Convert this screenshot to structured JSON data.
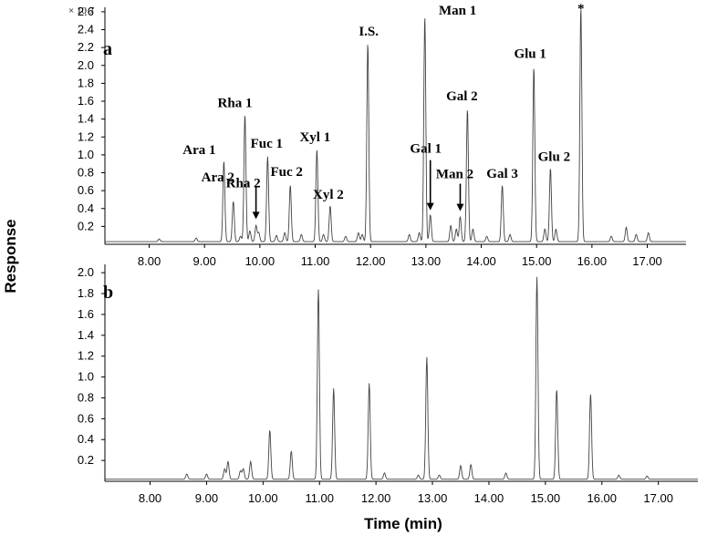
{
  "chart_data": {
    "type": "line",
    "xlabel": "Time (min)",
    "ylabel": "Response",
    "x_range": [
      7.2,
      17.7
    ],
    "x_ticks": [
      "8.00",
      "9.00",
      "10.00",
      "11.00",
      "12.00",
      "13.00",
      "14.00",
      "15.00",
      "16.00",
      "17.00"
    ],
    "panels": [
      {
        "label": "a",
        "y_exponent": "× 10 7",
        "y_range": [
          0,
          2.65
        ],
        "y_ticks": [
          "0.2",
          "0.4",
          "0.6",
          "0.8",
          "1.0",
          "1.2",
          "1.4",
          "1.6",
          "1.8",
          "2.0",
          "2.2",
          "2.4",
          "2.6"
        ],
        "baseline": 0.03,
        "peaks": [
          {
            "x": 8.18,
            "h": 0.03
          },
          {
            "x": 8.85,
            "h": 0.04
          },
          {
            "x": 9.35,
            "h": 0.9
          },
          {
            "x": 9.52,
            "h": 0.45
          },
          {
            "x": 9.65,
            "h": 0.06
          },
          {
            "x": 9.73,
            "h": 1.42
          },
          {
            "x": 9.82,
            "h": 0.12
          },
          {
            "x": 9.93,
            "h": 0.18
          },
          {
            "x": 9.98,
            "h": 0.1
          },
          {
            "x": 10.14,
            "h": 0.95
          },
          {
            "x": 10.3,
            "h": 0.07
          },
          {
            "x": 10.45,
            "h": 0.1
          },
          {
            "x": 10.55,
            "h": 0.63
          },
          {
            "x": 10.75,
            "h": 0.08
          },
          {
            "x": 11.03,
            "h": 1.03
          },
          {
            "x": 11.15,
            "h": 0.08
          },
          {
            "x": 11.27,
            "h": 0.4
          },
          {
            "x": 11.55,
            "h": 0.06
          },
          {
            "x": 11.78,
            "h": 0.1
          },
          {
            "x": 11.85,
            "h": 0.08
          },
          {
            "x": 11.95,
            "h": 2.22
          },
          {
            "x": 12.7,
            "h": 0.08
          },
          {
            "x": 12.88,
            "h": 0.1
          },
          {
            "x": 12.98,
            "h": 2.52
          },
          {
            "x": 13.08,
            "h": 0.3
          },
          {
            "x": 13.45,
            "h": 0.18
          },
          {
            "x": 13.55,
            "h": 0.14
          },
          {
            "x": 13.62,
            "h": 0.28
          },
          {
            "x": 13.75,
            "h": 1.48
          },
          {
            "x": 13.85,
            "h": 0.14
          },
          {
            "x": 14.1,
            "h": 0.06
          },
          {
            "x": 14.38,
            "h": 0.63
          },
          {
            "x": 14.52,
            "h": 0.08
          },
          {
            "x": 14.95,
            "h": 1.95
          },
          {
            "x": 15.15,
            "h": 0.14
          },
          {
            "x": 15.25,
            "h": 0.82
          },
          {
            "x": 15.35,
            "h": 0.14
          },
          {
            "x": 15.8,
            "h": 2.62
          },
          {
            "x": 16.35,
            "h": 0.06
          },
          {
            "x": 16.62,
            "h": 0.16
          },
          {
            "x": 16.8,
            "h": 0.08
          },
          {
            "x": 17.02,
            "h": 0.1
          }
        ],
        "annotations": [
          {
            "text": "Ara 1",
            "x": 9.35,
            "y": 0.9
          },
          {
            "text": "Ara 2",
            "x": 9.52,
            "y": 0.45
          },
          {
            "text": "Rha 1",
            "x": 9.73,
            "y": 1.42
          },
          {
            "text": "Rha 2",
            "x": 9.93,
            "y": 0.18
          },
          {
            "text": "Fuc 1",
            "x": 10.14,
            "y": 0.95
          },
          {
            "text": "Fuc 2",
            "x": 10.55,
            "y": 0.63
          },
          {
            "text": "Xyl 1",
            "x": 11.03,
            "y": 1.03
          },
          {
            "text": "Xyl 2",
            "x": 11.27,
            "y": 0.4
          },
          {
            "text": "I.S.",
            "x": 11.95,
            "y": 2.22
          },
          {
            "text": "Man 1",
            "x": 12.98,
            "y": 2.52
          },
          {
            "text": "Gal 1",
            "x": 13.08,
            "y": 0.3
          },
          {
            "text": "Man 2",
            "x": 13.62,
            "y": 0.28
          },
          {
            "text": "Gal 2",
            "x": 13.75,
            "y": 1.48
          },
          {
            "text": "Gal 3",
            "x": 14.38,
            "y": 0.63
          },
          {
            "text": "Glu 1",
            "x": 14.95,
            "y": 1.95
          },
          {
            "text": "Glu 2",
            "x": 15.25,
            "y": 0.82
          },
          {
            "text": "*",
            "x": 15.8,
            "y": 2.62
          }
        ]
      },
      {
        "label": "b",
        "y_range": [
          0,
          2.08
        ],
        "y_ticks": [
          "0.2",
          "0.4",
          "0.6",
          "0.8",
          "1.0",
          "1.2",
          "1.4",
          "1.6",
          "1.8",
          "2.0"
        ],
        "baseline": 0.02,
        "peaks": [
          {
            "x": 8.65,
            "h": 0.05
          },
          {
            "x": 9.0,
            "h": 0.05
          },
          {
            "x": 9.32,
            "h": 0.1
          },
          {
            "x": 9.38,
            "h": 0.17
          },
          {
            "x": 9.6,
            "h": 0.08
          },
          {
            "x": 9.65,
            "h": 0.1
          },
          {
            "x": 9.78,
            "h": 0.17
          },
          {
            "x": 10.12,
            "h": 0.47
          },
          {
            "x": 10.5,
            "h": 0.27
          },
          {
            "x": 10.98,
            "h": 1.82
          },
          {
            "x": 11.25,
            "h": 0.87
          },
          {
            "x": 11.88,
            "h": 0.92
          },
          {
            "x": 12.15,
            "h": 0.06
          },
          {
            "x": 12.75,
            "h": 0.04
          },
          {
            "x": 12.9,
            "h": 1.17
          },
          {
            "x": 13.12,
            "h": 0.04
          },
          {
            "x": 13.5,
            "h": 0.13
          },
          {
            "x": 13.68,
            "h": 0.14
          },
          {
            "x": 14.3,
            "h": 0.06
          },
          {
            "x": 14.85,
            "h": 1.94
          },
          {
            "x": 15.2,
            "h": 0.86
          },
          {
            "x": 15.8,
            "h": 0.82
          },
          {
            "x": 16.3,
            "h": 0.04
          },
          {
            "x": 16.8,
            "h": 0.03
          }
        ]
      }
    ]
  }
}
